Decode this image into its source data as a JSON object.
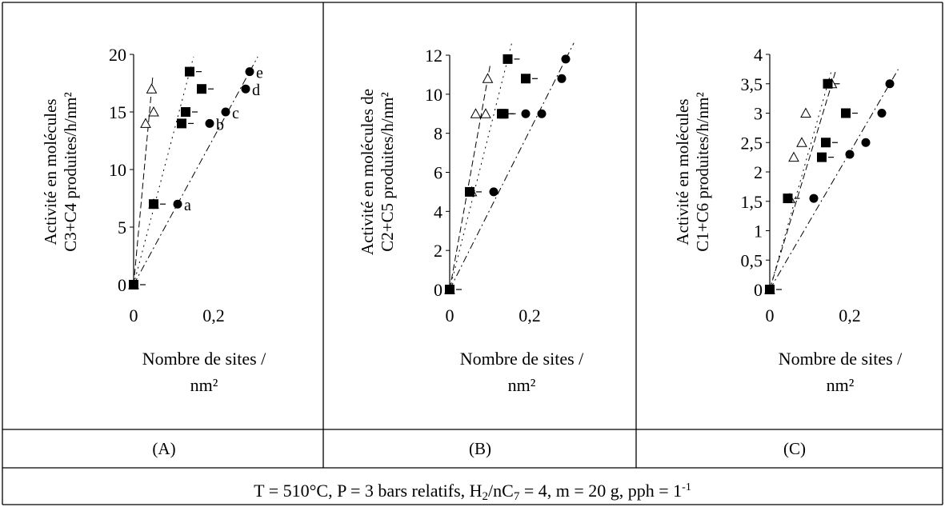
{
  "panels": [
    "(A)",
    "(B)",
    "(C)"
  ],
  "conditions": {
    "text1": "T = 510°C, P = 3 bars relatifs, H",
    "sub1": "2",
    "text2": "/nC",
    "sub2": "7",
    "text3": " = 4, m = 20 g, pph = 1",
    "sup1": "-1"
  },
  "chart_data": [
    {
      "type": "scatter",
      "panel": "(A)",
      "ylabel_lines": [
        "Activité en molécules",
        "C3+C4 produites/h/nm²"
      ],
      "xlabel_lines": [
        "Nombre de sites /",
        "nm²"
      ],
      "xticks": [
        "0",
        "0,2"
      ],
      "yticks": [
        "0",
        "5",
        "10",
        "15",
        "20"
      ],
      "xlim": [
        0,
        0.3
      ],
      "ylim": [
        0,
        20
      ],
      "grid": false,
      "series": [
        {
          "marker": "triangle-open",
          "points": [
            [
              0,
              0
            ],
            [
              0.05,
              7
            ],
            [
              0.03,
              14
            ],
            [
              0.05,
              15
            ],
            [
              0.045,
              17
            ]
          ]
        },
        {
          "marker": "square-filled",
          "points": [
            [
              0,
              0
            ],
            [
              0.05,
              7
            ],
            [
              0.12,
              14
            ],
            [
              0.13,
              15
            ],
            [
              0.17,
              17
            ],
            [
              0.14,
              18.5
            ]
          ]
        },
        {
          "marker": "circle-filled",
          "points": [
            [
              0,
              0
            ],
            [
              0.11,
              7
            ],
            [
              0.19,
              14
            ],
            [
              0.23,
              15
            ],
            [
              0.28,
              17
            ],
            [
              0.29,
              18.5
            ]
          ]
        }
      ],
      "annotations": [
        "a",
        "b",
        "c",
        "d",
        "e"
      ]
    },
    {
      "type": "scatter",
      "panel": "(B)",
      "ylabel_lines": [
        "Activité en molécules de",
        "C2+C5 produites/h/nm²"
      ],
      "xlabel_lines": [
        "Nombre de sites /",
        "nm²"
      ],
      "xticks": [
        "0",
        "0,2"
      ],
      "yticks": [
        "0",
        "2",
        "4",
        "6",
        "8",
        "10",
        "12"
      ],
      "xlim": [
        0,
        0.3
      ],
      "ylim": [
        0,
        12
      ],
      "grid": false,
      "series": [
        {
          "marker": "triangle-open",
          "points": [
            [
              0,
              0
            ],
            [
              0.055,
              5
            ],
            [
              0.065,
              9
            ],
            [
              0.09,
              9
            ],
            [
              0.095,
              10.8
            ]
          ]
        },
        {
          "marker": "square-filled",
          "points": [
            [
              0,
              0
            ],
            [
              0.05,
              5
            ],
            [
              0.13,
              9
            ],
            [
              0.135,
              9
            ],
            [
              0.19,
              10.8
            ],
            [
              0.145,
              11.8
            ]
          ]
        },
        {
          "marker": "circle-filled",
          "points": [
            [
              0,
              0
            ],
            [
              0.11,
              5
            ],
            [
              0.19,
              9
            ],
            [
              0.23,
              9
            ],
            [
              0.28,
              10.8
            ],
            [
              0.29,
              11.8
            ]
          ]
        }
      ]
    },
    {
      "type": "scatter",
      "panel": "(C)",
      "ylabel_lines": [
        "Activité en molécules",
        "C1+C6 produites/h/nm²"
      ],
      "xlabel_lines": [
        "Nombre de sites /",
        "nm²"
      ],
      "xticks": [
        "0",
        "0,2"
      ],
      "yticks": [
        "0",
        "0,5",
        "1",
        "1,5",
        "2",
        "2,5",
        "3",
        "3,5",
        "4"
      ],
      "xlim": [
        0,
        0.3
      ],
      "ylim": [
        0,
        4
      ],
      "grid": false,
      "series": [
        {
          "marker": "triangle-open",
          "points": [
            [
              0,
              0
            ],
            [
              0.05,
              1.55
            ],
            [
              0.06,
              2.25
            ],
            [
              0.08,
              2.5
            ],
            [
              0.09,
              3
            ],
            [
              0.155,
              3.5
            ]
          ]
        },
        {
          "marker": "square-filled",
          "points": [
            [
              0,
              0
            ],
            [
              0.045,
              1.55
            ],
            [
              0.13,
              2.25
            ],
            [
              0.14,
              2.5
            ],
            [
              0.19,
              3
            ],
            [
              0.145,
              3.5
            ]
          ]
        },
        {
          "marker": "circle-filled",
          "points": [
            [
              0,
              0
            ],
            [
              0.11,
              1.55
            ],
            [
              0.2,
              2.3
            ],
            [
              0.24,
              2.5
            ],
            [
              0.28,
              3
            ],
            [
              0.3,
              3.5
            ]
          ]
        }
      ]
    }
  ]
}
